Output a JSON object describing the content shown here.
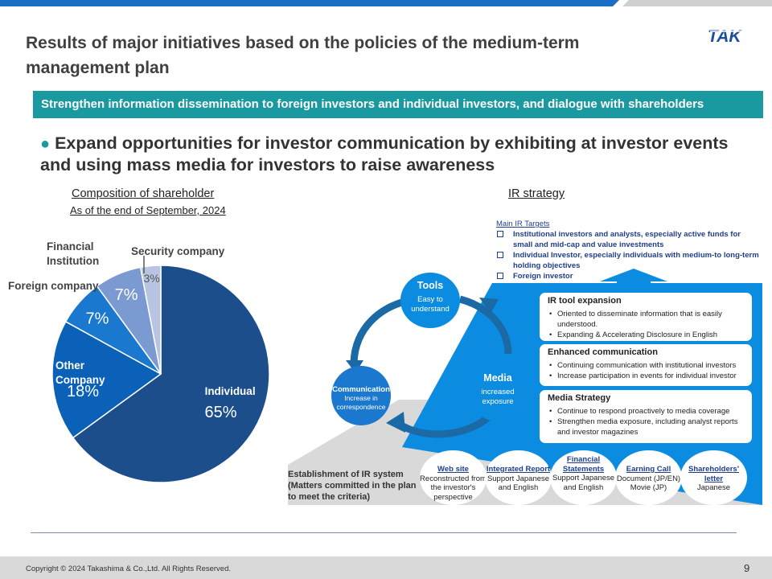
{
  "header": {
    "title": "Results of major initiatives based on the policies of the medium-term management plan",
    "logo_text": "TAK"
  },
  "banner": {
    "text": "Strengthen information dissemination to foreign investors and individual investors, and dialogue with shareholders"
  },
  "lead": {
    "bullet": "●",
    "text": "Expand opportunities for investor communication by exhibiting at investor events and using mass media for investors to raise awareness"
  },
  "composition": {
    "heading": "Composition of shareholder",
    "subheading": "As of the end of September, 2024"
  },
  "chart_data": {
    "type": "pie",
    "slices": [
      {
        "label": "Individual",
        "value": 65,
        "display": "65%",
        "color": "#1b4e8a"
      },
      {
        "label": "Other Company",
        "value": 18,
        "display": "18%",
        "color": "#0b60b8"
      },
      {
        "label": "Foreign company",
        "value": 7,
        "display": "7%",
        "color": "#1a78cf"
      },
      {
        "label": "Financial Institution",
        "value": 7,
        "display": "7%",
        "color": "#7b9ad2"
      },
      {
        "label": "Security company",
        "value": 3,
        "display": "3%",
        "color": "#b8c4e2"
      }
    ],
    "external_labels": {
      "foreign": "Foreign company",
      "financial": "Financial Institution",
      "security": "Security company"
    }
  },
  "ir": {
    "heading": "IR strategy",
    "targets_title": "Main IR Targets",
    "targets": [
      "Institutional investors and analysts, especially active funds for small and mid-cap and value investments",
      "Individual Investor, especially individuals with medium-to long-term holding objectives",
      "Foreign investor"
    ],
    "cycle": {
      "tools": {
        "title": "Tools",
        "sub": "Easy to understand"
      },
      "communication": {
        "title": "Communication",
        "sub": "Increase in correspondence"
      },
      "media": {
        "title": "Media",
        "sub": "increased exposure"
      }
    },
    "cards": [
      {
        "title": "IR tool expansion",
        "items": [
          "Oriented to disseminate information that is easily understood.",
          "Expanding & Accelerating Disclosure in English"
        ]
      },
      {
        "title": "Enhanced communication",
        "items": [
          "Continuing communication with institutional investors",
          "Increase participation in events for individual investor"
        ]
      },
      {
        "title": "Media Strategy",
        "items": [
          "Continue to respond proactively to media coverage",
          "Strengthen media exposure, including analyst reports and investor magazines"
        ]
      }
    ],
    "establishment": "Establishment of IR system (Matters committed in the plan to meet the criteria)",
    "system_items": [
      {
        "title": "Web site",
        "sub": "Reconstructed from the investor's perspective"
      },
      {
        "title": "Integrated Report",
        "sub": "Support Japanese and English"
      },
      {
        "title": "Financial Statements",
        "sub": "Support Japanese and English"
      },
      {
        "title": "Earning Call",
        "sub": "Document (JP/EN) Movie (JP)"
      },
      {
        "title": "Shareholders' letter",
        "sub": "Japanese"
      }
    ]
  },
  "footer": {
    "copyright": "Copyright © 2024 Takashima & Co.,Ltd. All Rights Reserved.",
    "page_number": "9"
  },
  "colors": {
    "accent": "#1a9aa0",
    "blue": "#0b8ce0",
    "navy": "#1f3e8c"
  }
}
